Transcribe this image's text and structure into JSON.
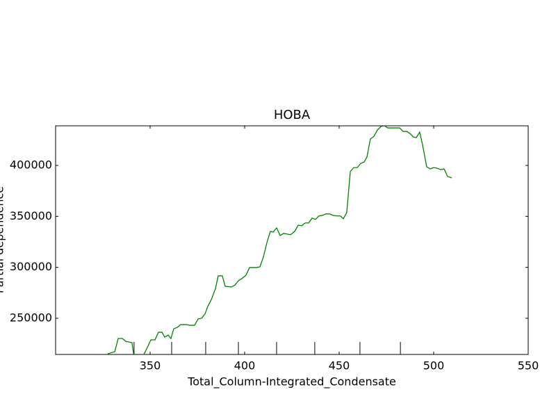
{
  "chart_data": {
    "type": "line",
    "title": "HOBA",
    "x_label": "Total_Column-Integrated_Condensate",
    "y_label": "Partial dependence",
    "xlim": [
      300,
      550
    ],
    "xticks": [
      350,
      400,
      450,
      500,
      550
    ],
    "ylim": [
      214500,
      438900
    ],
    "yticks": [
      250000,
      300000,
      350000,
      400000
    ],
    "rug": [
      341.5,
      361.4,
      379.4,
      396.7,
      416.9,
      437.1,
      461.0,
      482.4
    ],
    "series": [
      {
        "color": "#008000",
        "x": [
          327.6,
          331.3,
          333.1,
          335.3,
          337.1,
          340.4,
          341.5,
          346.0,
          348.5,
          350.4,
          352.6,
          354.4,
          356.3,
          357.7,
          359.6,
          361.0,
          362.5,
          364.3,
          366.2,
          369.1,
          371.0,
          373.5,
          375.4,
          377.2,
          379.0,
          380.5,
          382.4,
          384.6,
          386.0,
          388.2,
          389.7,
          393.0,
          394.9,
          396.7,
          398.5,
          400.7,
          402.6,
          406.3,
          408.1,
          409.9,
          411.8,
          413.6,
          415.1,
          416.9,
          418.8,
          420.6,
          424.3,
          426.5,
          428.3,
          430.1,
          432.0,
          433.8,
          435.7,
          437.5,
          439.3,
          441.2,
          443.0,
          444.9,
          446.7,
          448.9,
          450.7,
          452.2,
          454.0,
          455.9,
          457.7,
          459.6,
          461.4,
          463.2,
          464.7,
          466.5,
          468.4,
          470.2,
          472.1,
          473.9,
          475.7,
          477.6,
          480.1,
          482.0,
          483.8,
          485.7,
          487.5,
          489.3,
          490.8,
          492.6,
          494.1,
          496.3,
          498.2,
          500.0,
          501.8,
          503.7,
          505.5,
          507.4,
          509.6
        ],
        "values": [
          215200,
          217200,
          230200,
          230200,
          227400,
          226100,
          212000,
          212000,
          221300,
          228800,
          228800,
          236300,
          236300,
          231500,
          233500,
          230100,
          239700,
          241000,
          243800,
          243800,
          243100,
          243100,
          249300,
          250000,
          254100,
          261600,
          268400,
          279300,
          291600,
          291600,
          281400,
          280700,
          282700,
          286800,
          288900,
          292300,
          299800,
          299800,
          300500,
          310000,
          324400,
          335300,
          334600,
          338700,
          331200,
          333300,
          332000,
          335300,
          341400,
          340800,
          343500,
          343500,
          348300,
          347000,
          350400,
          351000,
          352400,
          352400,
          351000,
          350400,
          350400,
          347600,
          353700,
          393900,
          397900,
          397900,
          402000,
          403400,
          408200,
          425900,
          428600,
          434700,
          438200,
          439000,
          436800,
          436800,
          436800,
          436800,
          433400,
          433400,
          431300,
          427900,
          427300,
          432700,
          420400,
          398600,
          396600,
          397900,
          397300,
          395900,
          396600,
          389100,
          387700
        ]
      }
    ]
  }
}
